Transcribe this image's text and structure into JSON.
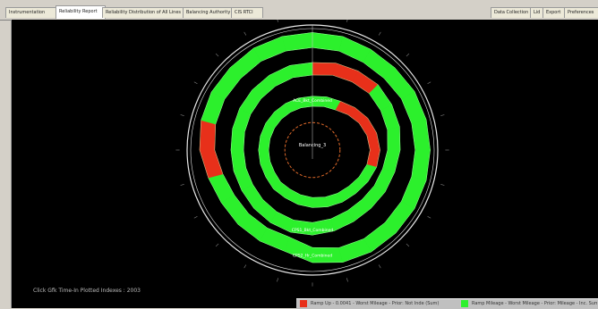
{
  "tabs": [
    {
      "label": "Instrumentation",
      "active": false
    },
    {
      "label": "Reliability Report",
      "active": true
    },
    {
      "label": "Reliability Distribution of All Lines",
      "active": false
    },
    {
      "label": "Balancing Authority",
      "active": false
    },
    {
      "label": "CIS RTCI",
      "active": false
    }
  ],
  "right_tabs": [
    {
      "label": "Data Collection"
    },
    {
      "label": "Lid"
    },
    {
      "label": "Export"
    },
    {
      "label": "Preferences"
    }
  ],
  "footer_text": "Click Gfk Time-In Plotted Indexes : 2003",
  "colors": {
    "band": "#2cf02c",
    "alert": "#e8301a",
    "ring": "#e8e8e8",
    "inner_ring": "#e06a2a",
    "background": "#000000"
  },
  "chart_data": {
    "type": "radar",
    "directions": 24,
    "center_label": "Balancing_3",
    "band_labels": [
      "ACE_Bkt_Combined",
      "CPS1_Bkt_Combined",
      "CPS2_Hr_Combined"
    ],
    "bands": [
      {
        "name": "inner",
        "inner": [
          0.35,
          0.36,
          0.37,
          0.4,
          0.43,
          0.45,
          0.46,
          0.45,
          0.43,
          0.41,
          0.4,
          0.39,
          0.38,
          0.37,
          0.36,
          0.36,
          0.35,
          0.35,
          0.35,
          0.35,
          0.35,
          0.35,
          0.35,
          0.35
        ],
        "width": 0.08,
        "alert_segments": [
          2,
          3,
          4,
          5,
          6
        ]
      },
      {
        "name": "middle",
        "inner": [
          0.6,
          0.62,
          0.63,
          0.64,
          0.63,
          0.62,
          0.6,
          0.58,
          0.57,
          0.56,
          0.56,
          0.57,
          0.58,
          0.58,
          0.57,
          0.56,
          0.55,
          0.55,
          0.55,
          0.56,
          0.57,
          0.58,
          0.59,
          0.6
        ],
        "width": 0.1,
        "alert_segments": [
          0,
          1,
          2
        ]
      },
      {
        "name": "outer",
        "inner": [
          0.82,
          0.82,
          0.81,
          0.81,
          0.82,
          0.82,
          0.82,
          0.82,
          0.82,
          0.82,
          0.82,
          0.81,
          0.78,
          0.72,
          0.72,
          0.72,
          0.72,
          0.74,
          0.78,
          0.8,
          0.81,
          0.81,
          0.82,
          0.82
        ],
        "width": 0.12,
        "alert_segments": [
          17,
          18
        ]
      }
    ],
    "inner_ring_radius": 0.22,
    "outer_ring_radius": 1.0
  },
  "legend": [
    {
      "label": "Ramp Up - 0.0041 - Worst Mileage - Prior: Not Inde (Sum)",
      "color": "#e8301a"
    },
    {
      "label": "Ramp Mileage - Worst Mileage - Prior: Mileage - Inc. Sum",
      "color": "#2cf02c"
    }
  ]
}
